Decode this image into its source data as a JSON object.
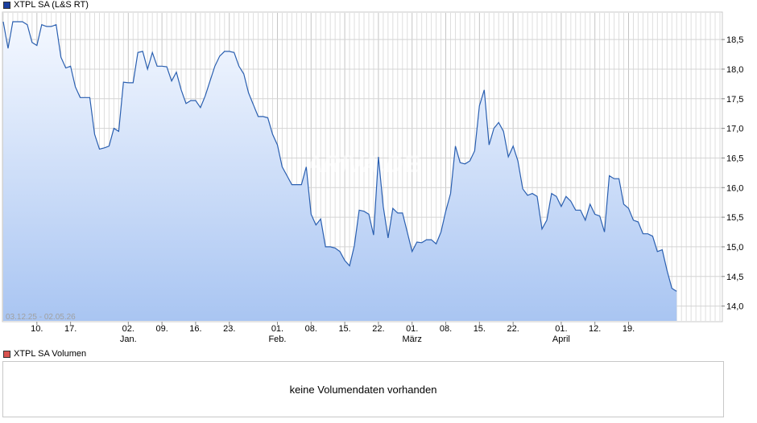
{
  "price_legend": {
    "label": "XTPL SA (L&S RT)",
    "color": "#1a3fa0"
  },
  "volume_legend": {
    "label": "XTPL SA Volumen",
    "color": "#d9534f"
  },
  "date_range": "03.12.25 - 02.05.26",
  "watermark": "ARIVA.DE",
  "volume_empty_text": "keine Volumendaten vorhanden",
  "chart_data": {
    "type": "area",
    "title": "XTPL SA (L&S RT)",
    "ylim": [
      13.75,
      18.95
    ],
    "yticks": [
      "14,0",
      "14,5",
      "15,0",
      "15,5",
      "16,0",
      "16,5",
      "17,0",
      "17,5",
      "18,0",
      "18,5"
    ],
    "ytick_values": [
      14.0,
      14.5,
      15.0,
      15.5,
      16.0,
      16.5,
      17.0,
      17.5,
      18.0,
      18.5
    ],
    "x_range": [
      0,
      149
    ],
    "xticks": [
      {
        "i": 7,
        "label": "10."
      },
      {
        "i": 14,
        "label": "17."
      },
      {
        "i": 26,
        "label": "02."
      },
      {
        "i": 33,
        "label": "09."
      },
      {
        "i": 40,
        "label": "16."
      },
      {
        "i": 47,
        "label": "23."
      },
      {
        "i": 57,
        "label": "01."
      },
      {
        "i": 64,
        "label": "08."
      },
      {
        "i": 71,
        "label": "15."
      },
      {
        "i": 78,
        "label": "22."
      },
      {
        "i": 85,
        "label": "01."
      },
      {
        "i": 92,
        "label": "08."
      },
      {
        "i": 99,
        "label": "15."
      },
      {
        "i": 106,
        "label": "22."
      },
      {
        "i": 116,
        "label": "01."
      },
      {
        "i": 123,
        "label": "12."
      },
      {
        "i": 130,
        "label": "19."
      }
    ],
    "months": [
      {
        "i": 26,
        "label": "Jan."
      },
      {
        "i": 57,
        "label": "Feb."
      },
      {
        "i": 85,
        "label": "März"
      },
      {
        "i": 116,
        "label": "April"
      }
    ],
    "series": [
      {
        "color": "#2a5fb0",
        "values": [
          18.8,
          18.35,
          18.8,
          18.8,
          18.8,
          18.75,
          18.45,
          18.4,
          18.75,
          18.72,
          18.72,
          18.75,
          18.2,
          18.02,
          18.05,
          17.7,
          17.52,
          17.52,
          17.52,
          16.9,
          16.65,
          16.67,
          16.7,
          17.0,
          16.95,
          17.78,
          17.77,
          17.77,
          18.28,
          18.3,
          18.0,
          18.28,
          18.05,
          18.05,
          18.04,
          17.8,
          17.95,
          17.65,
          17.42,
          17.47,
          17.47,
          17.35,
          17.55,
          17.8,
          18.05,
          18.22,
          18.3,
          18.3,
          18.28,
          18.05,
          17.92,
          17.6,
          17.4,
          17.2,
          17.2,
          17.18,
          16.9,
          16.72,
          16.35,
          16.2,
          16.05,
          16.05,
          16.05,
          16.35,
          15.55,
          15.37,
          15.47,
          15.0,
          15.0,
          14.98,
          14.92,
          14.77,
          14.68,
          15.02,
          15.62,
          15.6,
          15.55,
          15.2,
          16.52,
          15.68,
          15.15,
          15.65,
          15.57,
          15.57,
          15.25,
          14.92,
          15.08,
          15.07,
          15.12,
          15.12,
          15.05,
          15.25,
          15.6,
          15.9,
          16.7,
          16.42,
          16.4,
          16.45,
          16.62,
          17.38,
          17.65,
          16.72,
          17.0,
          17.1,
          16.95,
          16.52,
          16.7,
          16.45,
          15.98,
          15.87,
          15.9,
          15.85,
          15.3,
          15.45,
          15.9,
          15.85,
          15.68,
          15.85,
          15.77,
          15.62,
          15.62,
          15.45,
          15.72,
          15.55,
          15.52,
          15.25,
          16.2,
          16.15,
          16.15,
          15.72,
          15.65,
          15.45,
          15.42,
          15.22,
          15.22,
          15.18,
          14.92,
          14.95,
          14.6,
          14.3,
          14.25
        ]
      }
    ]
  }
}
